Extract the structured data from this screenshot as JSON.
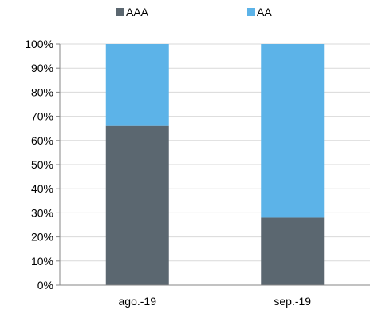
{
  "chart_data": {
    "type": "bar",
    "stacked": true,
    "percent": true,
    "categories": [
      "ago.-19",
      "sep.-19"
    ],
    "series": [
      {
        "name": "AAA",
        "color": "#5b6770",
        "values": [
          66,
          28
        ]
      },
      {
        "name": "AA",
        "color": "#5cb3e8",
        "values": [
          34,
          72
        ]
      }
    ],
    "ylim": [
      0,
      100
    ],
    "yticks": [
      "0%",
      "10%",
      "20%",
      "30%",
      "40%",
      "50%",
      "60%",
      "70%",
      "80%",
      "90%",
      "100%"
    ],
    "grid": true,
    "legend_position": "top"
  }
}
